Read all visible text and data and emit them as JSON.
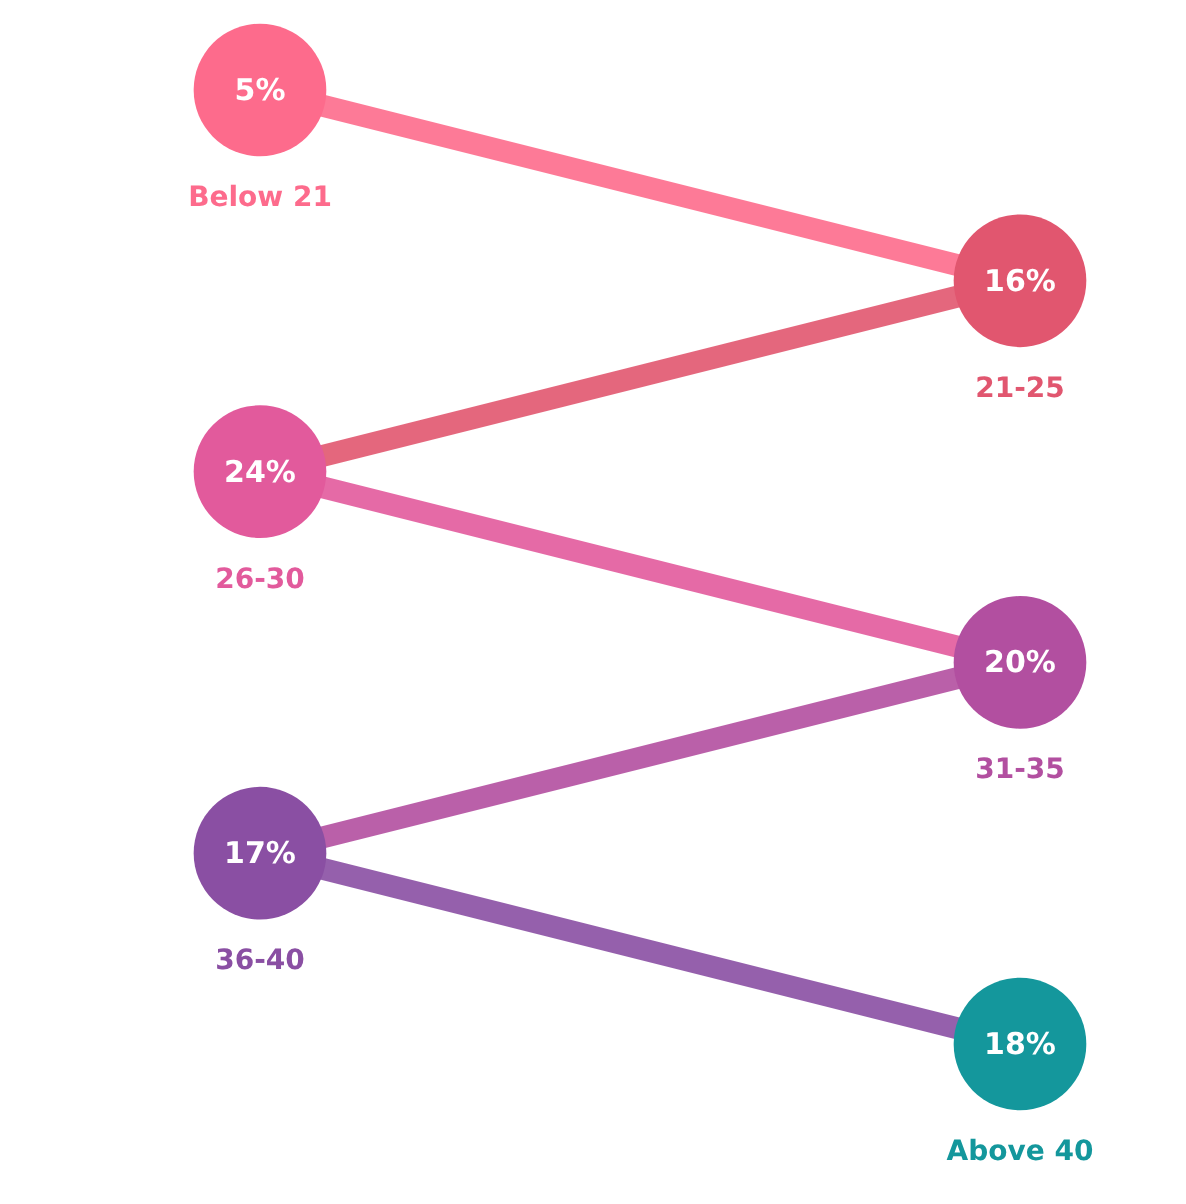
{
  "chart_data": {
    "type": "other",
    "categories": [
      "Below 21",
      "21-25",
      "26-30",
      "31-35",
      "36-40",
      "Above 40"
    ],
    "values": [
      5,
      16,
      24,
      20,
      17,
      18
    ],
    "value_labels": [
      "5%",
      "16%",
      "24%",
      "20%",
      "17%",
      "18%"
    ],
    "colors": [
      "#fd6b8c",
      "#e1566f",
      "#e25a9c",
      "#b24fa0",
      "#8a4fa3",
      "#14979c"
    ]
  }
}
